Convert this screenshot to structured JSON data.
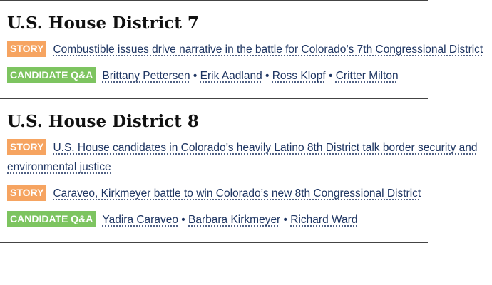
{
  "sections": [
    {
      "heading": "U.S. House District 7",
      "stories": [
        {
          "tag": "STORY",
          "text": "Combustible issues drive narrative in the battle for Colorado’s 7th Congressional District"
        }
      ],
      "qa": {
        "tag": "CANDIDATE Q&A",
        "names": [
          "Brittany Pettersen",
          "Erik Aadland",
          "Ross Klopf",
          "Critter Milton"
        ]
      }
    },
    {
      "heading": "U.S. House District 8",
      "stories": [
        {
          "tag": "STORY",
          "text": "U.S. House candidates in Colorado’s heavily Latino 8th District talk border security and environmental justice"
        },
        {
          "tag": "STORY",
          "text": "Caraveo, Kirkmeyer battle to win Colorado’s new 8th Congressional District"
        }
      ],
      "qa": {
        "tag": "CANDIDATE Q&A",
        "names": [
          "Yadira Caraveo",
          "Barbara Kirkmeyer",
          "Richard Ward"
        ]
      }
    }
  ]
}
